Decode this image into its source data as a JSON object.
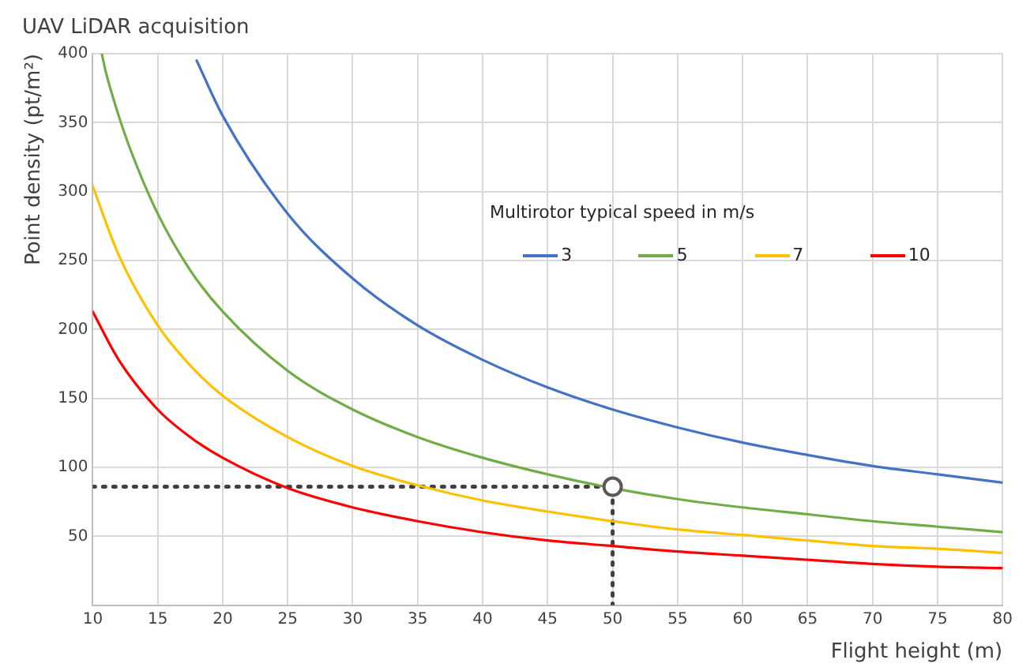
{
  "chart_data": {
    "type": "line",
    "title": "UAV LiDAR acquisition",
    "xlabel": "Flight height (m)",
    "ylabel": "Point density (pt/m²)",
    "legend_title": "Multirotor typical speed in m/s",
    "xlim": [
      10,
      80
    ],
    "xticks": [
      10,
      15,
      20,
      25,
      30,
      35,
      40,
      45,
      50,
      55,
      60,
      65,
      70,
      75,
      80
    ],
    "ylim": [
      0,
      400
    ],
    "yticks": [
      50,
      100,
      150,
      200,
      250,
      300,
      350,
      400
    ],
    "grid": true,
    "legend": "top right",
    "marker": "none",
    "line_style": "solid",
    "series": [
      {
        "name": "3",
        "color": "#4472c4",
        "x": [
          18,
          20,
          25,
          30,
          35,
          40,
          45,
          50,
          55,
          60,
          65,
          70,
          75,
          80
        ],
        "values": [
          395,
          355,
          284,
          237,
          203,
          178,
          158,
          142,
          129,
          118,
          109,
          101,
          95,
          89
        ]
      },
      {
        "name": "5",
        "color": "#70ad47",
        "x": [
          10.7,
          11,
          12,
          13,
          15,
          17.5,
          20,
          25,
          30,
          35,
          40,
          45,
          50,
          55,
          60,
          65,
          70,
          75,
          80
        ],
        "values": [
          400,
          387,
          355,
          328,
          284,
          243,
          213,
          170,
          142,
          122,
          107,
          95,
          85,
          77,
          71,
          66,
          61,
          57,
          53
        ]
      },
      {
        "name": "7",
        "color": "#ffc000",
        "x": [
          10,
          12,
          15,
          17.5,
          20,
          25,
          30,
          35,
          40,
          45,
          50,
          55,
          60,
          65,
          70,
          75,
          80
        ],
        "values": [
          304,
          254,
          203,
          174,
          152,
          122,
          101,
          87,
          76,
          68,
          61,
          55,
          51,
          47,
          43,
          41,
          38
        ]
      },
      {
        "name": "10",
        "color": "#ff0000",
        "x": [
          10,
          12,
          15,
          17.5,
          20,
          25,
          30,
          35,
          40,
          45,
          50,
          55,
          60,
          65,
          70,
          75,
          80
        ],
        "values": [
          213,
          178,
          142,
          122,
          107,
          85,
          71,
          61,
          53,
          47,
          43,
          39,
          36,
          33,
          30,
          28,
          27
        ]
      },
      {
        "color": "#404040",
        "x": [
          10,
          50,
          50
        ],
        "values": [
          86,
          86,
          0
        ],
        "line_style": "dotted"
      },
      {
        "type": "scatter",
        "color": "#595959",
        "x": [
          50
        ],
        "values": [
          86
        ],
        "marker": "circle"
      }
    ]
  }
}
